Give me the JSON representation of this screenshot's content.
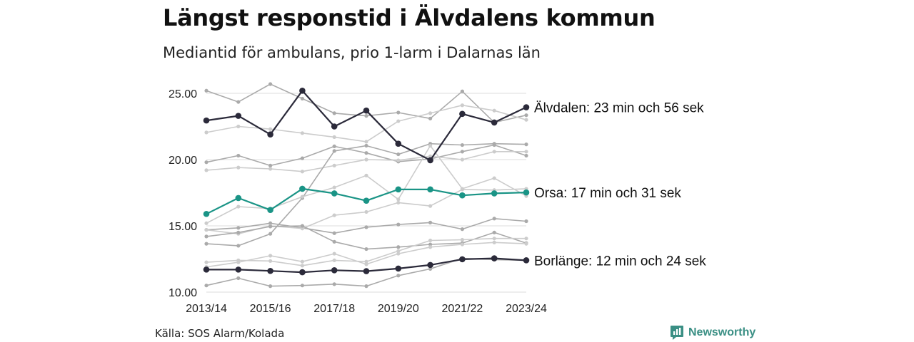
{
  "title": "Längst responstid i Älvdalens kommun",
  "subtitle": "Mediantid för ambulans, prio 1-larm i Dalarnas län",
  "source": "Källa: SOS Alarm/Kolada",
  "brand": {
    "name": "Newsworthy",
    "icon": "newsworthy-logo-icon",
    "color": "#3a8f84"
  },
  "chart_data": {
    "type": "line",
    "x": [
      "2013/14",
      "2014/15",
      "2015/16",
      "2016/17",
      "2017/18",
      "2018/19",
      "2019/20",
      "2020/21",
      "2021/22",
      "2022/23",
      "2023/24"
    ],
    "x_tick_labels": [
      "2013/14",
      "2015/16",
      "2017/18",
      "2019/20",
      "2021/22",
      "2023/24"
    ],
    "y_tick_labels": [
      "10.00",
      "15.00",
      "20.00",
      "25.00"
    ],
    "ylim": [
      10,
      25.5
    ],
    "grid": true,
    "colors": {
      "highlight_dark": "#2b2a3a",
      "highlight_teal": "#1a9486",
      "background_a": "#aaaaaa",
      "background_b": "#cccccc",
      "grid": "#dddddd"
    },
    "series": [
      {
        "name": "Älvdalen",
        "label": "Älvdalen: 23 min och 56 sek",
        "style": "dark",
        "values": [
          22.95,
          23.3,
          21.9,
          25.2,
          22.5,
          23.7,
          21.2,
          19.95,
          23.45,
          22.8,
          23.95
        ]
      },
      {
        "name": "Orsa",
        "label": "Orsa: 17 min och 31 sek",
        "style": "teal",
        "values": [
          15.9,
          17.1,
          16.2,
          17.8,
          17.45,
          16.9,
          17.75,
          17.75,
          17.3,
          17.45,
          17.52
        ]
      },
      {
        "name": "Borlänge",
        "label": "Borlänge: 12 min och 24 sek",
        "style": "dark",
        "values": [
          11.7,
          11.7,
          11.6,
          11.5,
          11.65,
          11.58,
          11.78,
          12.05,
          12.48,
          12.55,
          12.4
        ]
      },
      {
        "style": "a",
        "values": [
          25.2,
          24.35,
          25.7,
          24.6,
          23.5,
          23.3,
          23.55,
          23.1,
          25.15,
          22.8,
          23.35
        ]
      },
      {
        "style": "b",
        "values": [
          22.05,
          22.5,
          22.3,
          22.0,
          21.7,
          21.35,
          22.9,
          23.5,
          24.1,
          23.7,
          23.0
        ]
      },
      {
        "style": "a",
        "values": [
          19.8,
          20.3,
          19.55,
          20.1,
          21.0,
          20.5,
          19.85,
          20.05,
          20.6,
          21.1,
          20.3
        ]
      },
      {
        "style": "a",
        "values": [
          14.7,
          14.85,
          15.2,
          14.85,
          14.45,
          14.9,
          15.1,
          15.25,
          14.75,
          15.55,
          15.35
        ]
      },
      {
        "style": "b",
        "values": [
          19.2,
          19.4,
          19.3,
          19.1,
          19.55,
          20.0,
          19.95,
          20.25,
          20.0,
          20.6,
          20.6
        ]
      },
      {
        "style": "a",
        "values": [
          13.65,
          13.5,
          14.4,
          17.1,
          20.65,
          21.05,
          20.4,
          21.2,
          21.1,
          21.2,
          21.15
        ]
      },
      {
        "style": "b",
        "values": [
          15.2,
          16.45,
          16.3,
          17.2,
          17.9,
          18.8,
          17.0,
          21.05,
          17.8,
          18.6,
          17.25
        ]
      },
      {
        "style": "b",
        "values": [
          14.7,
          14.4,
          15.0,
          14.8,
          15.8,
          16.05,
          16.75,
          16.5,
          17.75,
          17.7,
          17.8
        ]
      },
      {
        "style": "a",
        "values": [
          14.2,
          14.5,
          14.95,
          15.0,
          13.8,
          13.25,
          13.4,
          13.6,
          13.7,
          14.5,
          13.7
        ]
      },
      {
        "style": "b",
        "values": [
          11.9,
          12.25,
          12.75,
          12.3,
          12.9,
          12.1,
          12.9,
          13.4,
          13.6,
          13.75,
          13.65
        ]
      },
      {
        "style": "b",
        "values": [
          12.25,
          12.4,
          12.35,
          12.0,
          12.4,
          12.3,
          13.1,
          13.9,
          13.95,
          14.05,
          14.05
        ]
      },
      {
        "style": "a",
        "values": [
          10.5,
          11.05,
          10.45,
          10.5,
          10.6,
          10.45,
          11.25,
          11.75,
          12.55,
          12.45,
          12.4
        ]
      }
    ]
  }
}
